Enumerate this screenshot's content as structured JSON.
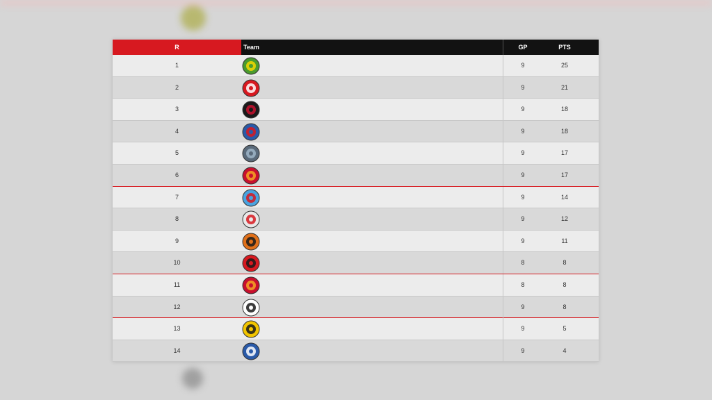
{
  "table": {
    "headers": {
      "rank": "R",
      "team": "Team",
      "gp": "GP",
      "pts": "PTS"
    },
    "rows": [
      {
        "rank": "1",
        "gp": "9",
        "pts": "25",
        "logo": "green-team-logo-icon",
        "color": "#4a9b2e",
        "accent": "#f2d800",
        "cut": false
      },
      {
        "rank": "2",
        "gp": "9",
        "pts": "21",
        "logo": "red-lion-logo-icon",
        "color": "#d71920",
        "accent": "#ffffff",
        "cut": false
      },
      {
        "rank": "3",
        "gp": "9",
        "pts": "18",
        "logo": "shield-logo-icon",
        "color": "#1a1a1a",
        "accent": "#c8102e",
        "cut": false
      },
      {
        "rank": "4",
        "gp": "9",
        "pts": "18",
        "logo": "blue-wings-logo-icon",
        "color": "#2a5aa8",
        "accent": "#d71920",
        "cut": false
      },
      {
        "rank": "5",
        "gp": "9",
        "pts": "17",
        "logo": "grey-eagle-logo-icon",
        "color": "#5a6a7a",
        "accent": "#9fb5c8",
        "cut": false
      },
      {
        "rank": "6",
        "gp": "9",
        "pts": "17",
        "logo": "red-circle-logo-icon",
        "color": "#c8102e",
        "accent": "#f5a623",
        "cut": true
      },
      {
        "rank": "7",
        "gp": "9",
        "pts": "14",
        "logo": "lion-blue-logo-icon",
        "color": "#4aa3df",
        "accent": "#d71920",
        "cut": false
      },
      {
        "rank": "8",
        "gp": "9",
        "pts": "12",
        "logo": "cross-wings-logo-icon",
        "color": "#e8e8e8",
        "accent": "#d71920",
        "cut": false
      },
      {
        "rank": "9",
        "gp": "9",
        "pts": "11",
        "logo": "tiger-logo-icon",
        "color": "#e0701a",
        "accent": "#1a1a1a",
        "cut": false
      },
      {
        "rank": "10",
        "gp": "8",
        "pts": "8",
        "logo": "black-bird-logo-icon",
        "color": "#d71920",
        "accent": "#1a1a1a",
        "cut": true
      },
      {
        "rank": "11",
        "gp": "8",
        "pts": "8",
        "logo": "flame-logo-icon",
        "color": "#c8102e",
        "accent": "#f5a623",
        "cut": false
      },
      {
        "rank": "12",
        "gp": "9",
        "pts": "8",
        "logo": "white-circle-logo-icon",
        "color": "#ffffff",
        "accent": "#1a1a1a",
        "cut": true
      },
      {
        "rank": "13",
        "gp": "9",
        "pts": "5",
        "logo": "yellow-shield-logo-icon",
        "color": "#f2c500",
        "accent": "#1a1a1a",
        "cut": false
      },
      {
        "rank": "14",
        "gp": "9",
        "pts": "4",
        "logo": "blue-oval-logo-icon",
        "color": "#2a5aa8",
        "accent": "#ffffff",
        "cut": false
      }
    ]
  }
}
